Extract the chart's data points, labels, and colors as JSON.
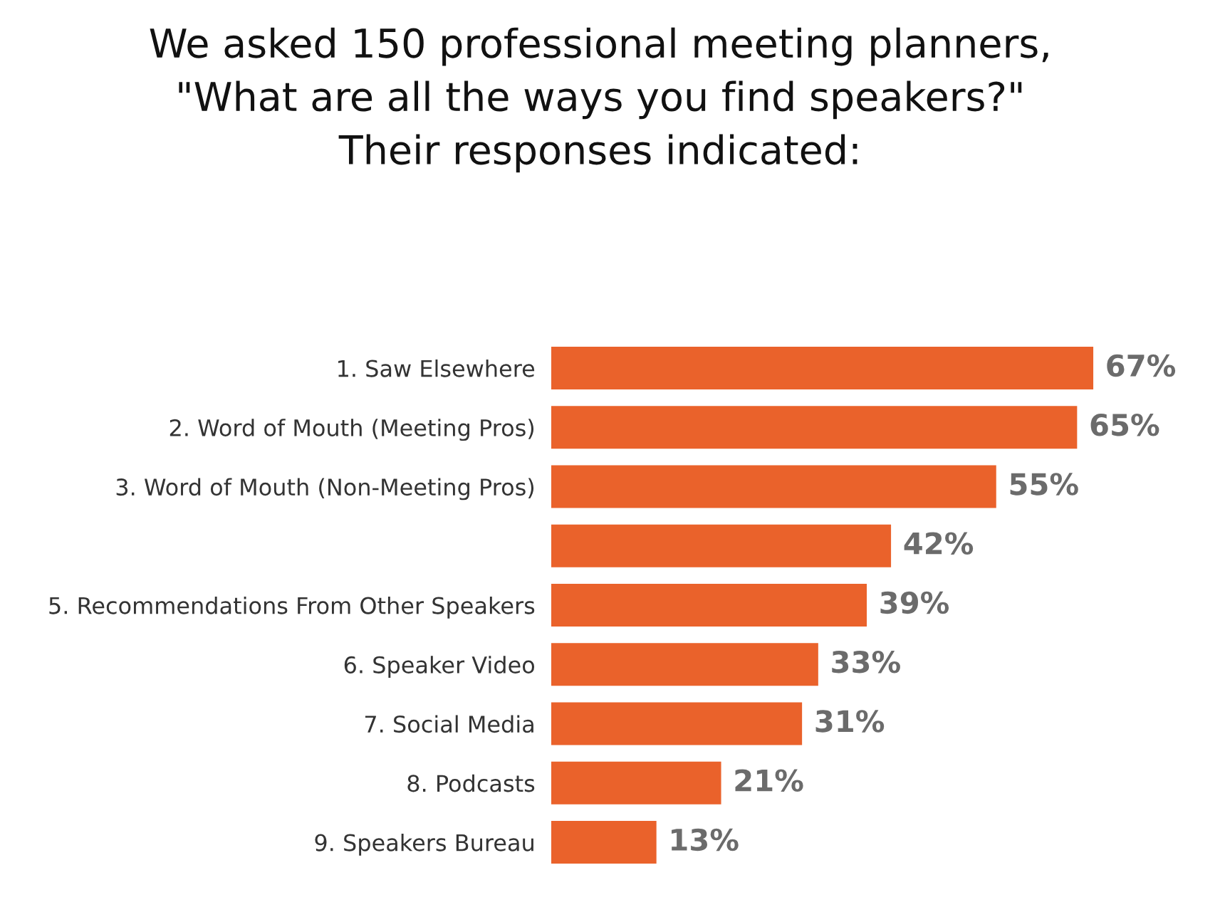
{
  "chart_data": {
    "type": "bar",
    "orientation": "horizontal",
    "title": "We asked 150 professional meeting planners,\n\"What are all the ways you find speakers?\"\nTheir responses indicated:",
    "categories": [
      "1. Saw Elsewhere",
      "2. Word of Mouth (Meeting Pros)",
      "3. Word of Mouth (Non-Meeting Pros)",
      null,
      "5. Recommendations From Other Speakers",
      "6. Speaker Video",
      "7. Social Media",
      "8. Podcasts",
      "9. Speakers Bureau"
    ],
    "values": [
      67,
      65,
      55,
      42,
      39,
      33,
      31,
      21,
      13
    ],
    "value_labels": [
      "67%",
      "65%",
      "55%",
      "42%",
      "39%",
      "33%",
      "31%",
      "21%",
      "13%"
    ],
    "color": "#ea622b",
    "grid": false,
    "legend": false
  }
}
